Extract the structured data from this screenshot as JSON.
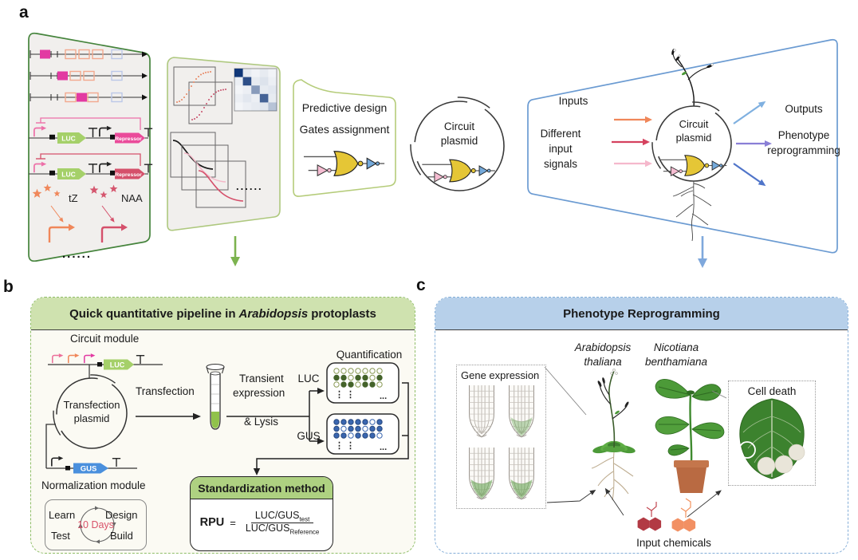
{
  "panel_a": {
    "label": "a",
    "library": {
      "luc1": "LUC",
      "repressor1": "Repressor",
      "luc2": "LUC",
      "repressor2": "Repressor",
      "tz": "tZ",
      "naa": "NAA",
      "dots": "......"
    },
    "model": {
      "dots": "......"
    },
    "design": {
      "line1": "Predictive design",
      "line2": "Gates assignment"
    },
    "plasmid": {
      "line1": "Circuit",
      "line2": "plasmid"
    },
    "app": {
      "inputs": "Inputs",
      "in1": "Different",
      "in2": "input",
      "in3": "signals",
      "plasmid1": "Circuit",
      "plasmid2": "plasmid",
      "outputs": "Outputs",
      "out1": "Phenotype",
      "out2": "reprogramming"
    },
    "heatmap": {
      "type": "heatmap",
      "values": [
        [
          1.0,
          0.1,
          0.06,
          0.1,
          0.06
        ],
        [
          0.08,
          0.88,
          0.1,
          0.14,
          0.08
        ],
        [
          0.05,
          0.08,
          0.5,
          0.1,
          0.12
        ],
        [
          0.08,
          0.12,
          0.08,
          0.78,
          0.1
        ],
        [
          0.05,
          0.08,
          0.1,
          0.12,
          0.3
        ]
      ]
    }
  },
  "panel_b": {
    "label": "b",
    "title": {
      "prefix": "Quick quantitative pipeline in",
      "italic": "Arabidopsis",
      "suffix": "protoplasts"
    },
    "circuit_module": "Circuit module",
    "luc_gene": "LUC",
    "plasmid_line1": "Transfection",
    "plasmid_line2": "plasmid",
    "transfection": "Transfection",
    "transient1": "Transient",
    "transient2": "expression",
    "lysis": "& Lysis",
    "luc_assay": "LUC",
    "gus_assay": "GUS",
    "quantification": "Quantification",
    "gus_gene": "GUS",
    "normalization": "Normalization module",
    "dbtl": {
      "learn": "Learn",
      "design": "Design",
      "test": "Test",
      "build": "Build",
      "days": "10 Days"
    },
    "std": {
      "title": "Standardization method",
      "rpu": "RPU",
      "eq": "=",
      "num": "LUC/GUS",
      "num_sub": "test",
      "den": "LUC/GUS",
      "den_sub": "Reference"
    },
    "plates": {
      "luc": {
        "pattern": [
          [
            0,
            0,
            0,
            0,
            0,
            0,
            0
          ],
          [
            1,
            1,
            0,
            1,
            1,
            0,
            1
          ],
          [
            0,
            1,
            1,
            0,
            1,
            1,
            0
          ]
        ],
        "filled": "#44632a",
        "stroke_filled": "#44632a",
        "stroke_open": "#8a9a55",
        "ellipsis": "⋮  ⋮",
        "more": "..."
      },
      "gus": {
        "pattern": [
          [
            1,
            1,
            1,
            1,
            1,
            0,
            1
          ],
          [
            1,
            0,
            1,
            1,
            0,
            1,
            1
          ],
          [
            1,
            1,
            0,
            1,
            1,
            1,
            0
          ]
        ],
        "filled": "#3a66b0",
        "stroke_filled": "#28497e",
        "stroke_open": "#3a66b0",
        "ellipsis": "⋮  ⋮",
        "more": "..."
      }
    }
  },
  "panel_c": {
    "label": "c",
    "title": "Phenotype Reprogramming",
    "species1_line1": "Arabidopsis",
    "species1_line2": "thaliana",
    "species2_line1": "Nicotiana",
    "species2_line2": "benthamiana",
    "gene_expression": "Gene expression",
    "cell_death": "Cell death",
    "input_chemicals": "Input chemicals"
  },
  "colors": {
    "funnel_green_border": "#45843c",
    "funnel_light_green_border": "#b5cc7a",
    "funnel_fill": "#f1efed",
    "blue_funnel_border": "#6b9bd2",
    "green_arrow": "#7cb34f",
    "blue_arrow": "#7fa8dc",
    "luc_green": "#a5d069",
    "gus_blue": "#4a90dd",
    "magenta": "#e23aa2",
    "repressor_magenta": "#ea4b9a",
    "crimson": "#d5506b",
    "orange": "#f0875a",
    "pink": "#f5b8cc",
    "gate_yellow": "#e5c636",
    "gate_pink": "#f5bcd1",
    "gate_blue": "#74a9da",
    "panel_b_header": "#cfe2af",
    "panel_c_header": "#b7d0ea",
    "std_header": "#aed181",
    "pot_terracotta": "#b96a42",
    "days_red": "#d9536a"
  }
}
